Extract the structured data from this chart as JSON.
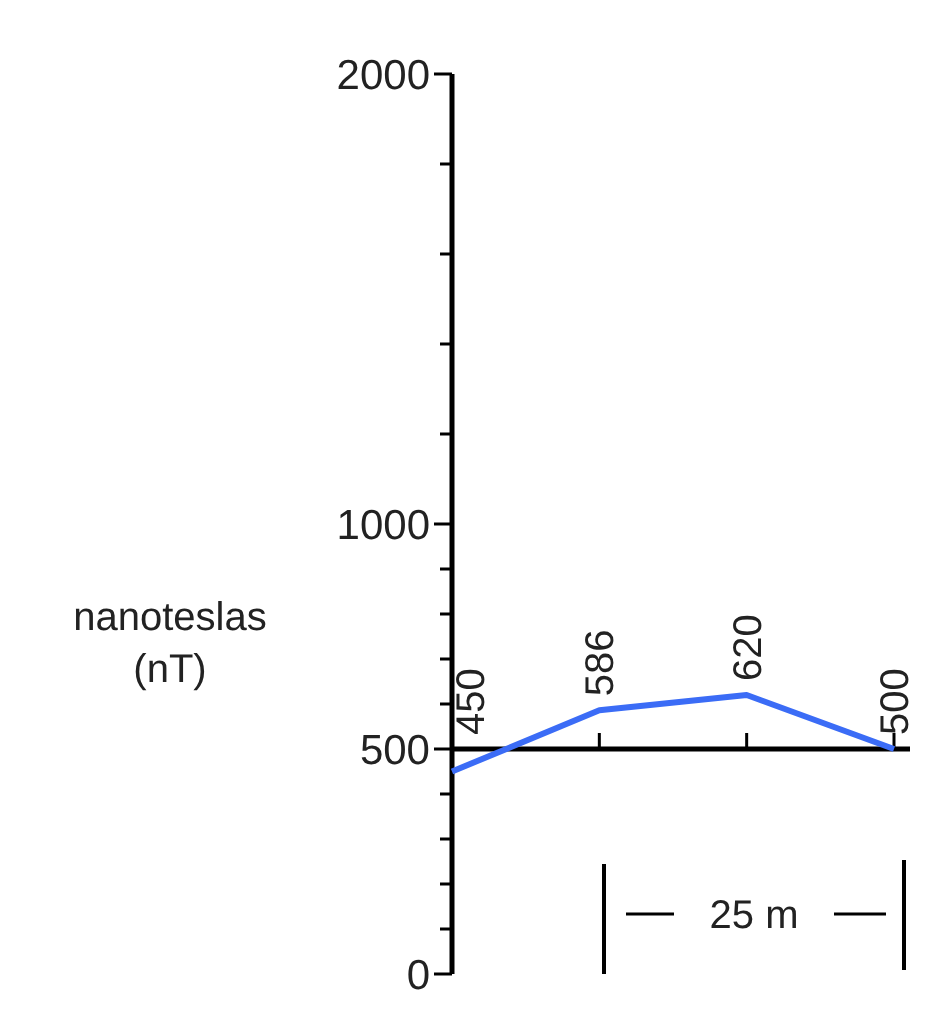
{
  "chart_data": {
    "type": "line",
    "ylabel": "nanoteslas (nT)",
    "categories": [
      null,
      null,
      null,
      null
    ],
    "series": [
      {
        "color": "#3b6cf6",
        "values": [
          450,
          586,
          620,
          500
        ]
      }
    ],
    "data_labels": true,
    "ylim": [
      0,
      2000
    ],
    "yticks": [
      0,
      {
        "value": 100,
        "label": null
      },
      {
        "value": 200,
        "label": null
      },
      {
        "value": 300,
        "label": null
      },
      {
        "value": 400,
        "label": null
      },
      500,
      {
        "value": 600,
        "label": null
      },
      {
        "value": 700,
        "label": null
      },
      {
        "value": 800,
        "label": null
      },
      {
        "value": 900,
        "label": null
      },
      1000,
      {
        "value": 1200,
        "label": null
      },
      {
        "value": 1400,
        "label": null
      },
      {
        "value": 1600,
        "label": null
      },
      {
        "value": 1800,
        "label": null
      },
      2000
    ],
    "ref_lines": [
      {
        "axis": "y",
        "value": 500,
        "color": "#000000"
      }
    ],
    "annotations": [
      "25 m"
    ],
    "grid": false,
    "marker": "none",
    "line_style": "solid"
  }
}
